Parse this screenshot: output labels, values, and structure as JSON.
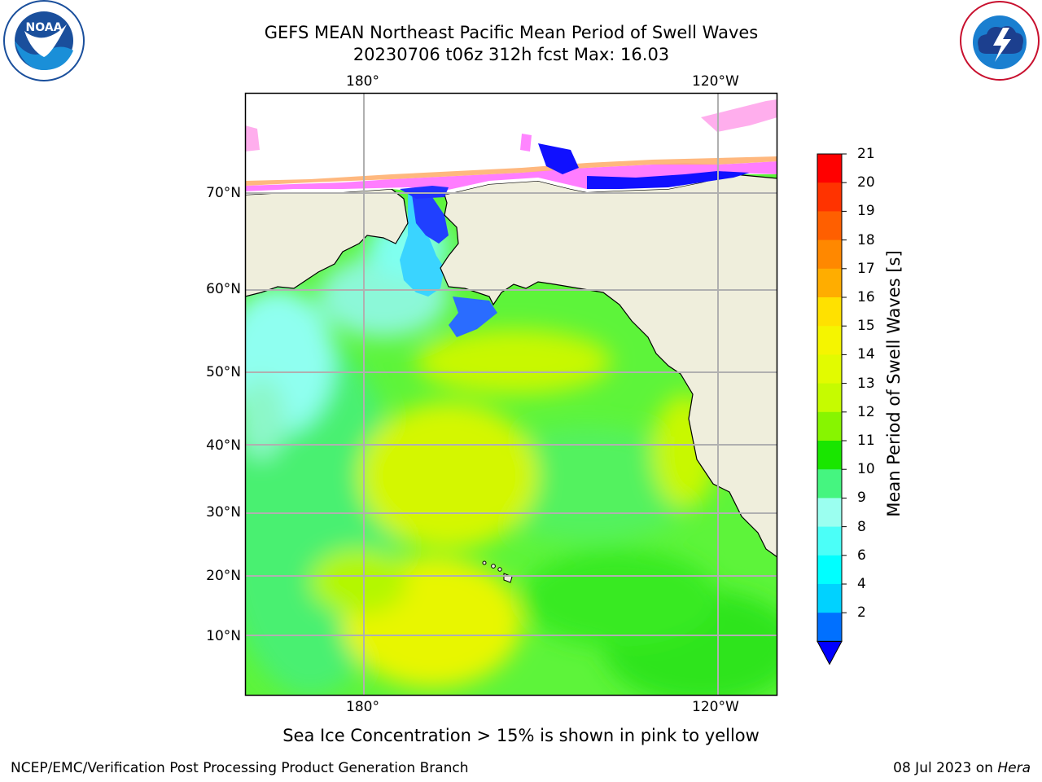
{
  "header": {
    "title_line1": "GEFS MEAN Northeast Pacific Mean Period of Swell Waves",
    "title_line2": "20230706 t06z 312h fcst   Max: 16.03"
  },
  "map": {
    "lon_labels": [
      "180°",
      "120°W"
    ],
    "lat_labels": [
      "70°N",
      "60°N",
      "50°N",
      "40°N",
      "30°N",
      "20°N",
      "10°N"
    ],
    "colors": {
      "land": "#efeedc",
      "ocean_green": "#66f228",
      "ocean_yellow": "#dff300",
      "ocean_cyan": "#7ffff0",
      "ice_blue": "#1010ff",
      "ice_pink": "#ff66ff",
      "ice_orange": "#ffb070"
    }
  },
  "colorbar": {
    "title": "Mean Period of Swell Waves [s]",
    "tick_labels": [
      "21",
      "20",
      "19",
      "18",
      "17",
      "16",
      "15",
      "14",
      "13",
      "12",
      "11",
      "10",
      "9",
      "8",
      "6",
      "4",
      "2"
    ],
    "colors": [
      "#ff0000",
      "#ff3300",
      "#ff5f00",
      "#ff8800",
      "#ffad00",
      "#ffe100",
      "#f5f500",
      "#e2fb00",
      "#c6fb00",
      "#87f500",
      "#19e600",
      "#45f580",
      "#9bfff0",
      "#4bfff8",
      "#00ffff",
      "#00d2ff",
      "#0070ff"
    ],
    "extend_color": "#0000ff"
  },
  "footer": {
    "note": "Sea Ice Concentration > 15% is shown in pink to yellow",
    "left": "NCEP/EMC/Verification Post Processing Product Generation Branch",
    "right_prefix": "08 Jul 2023 on ",
    "right_system": "Hera"
  },
  "logos": {
    "noaa_text": "NOAA",
    "nws_text": "NATIONAL WEATHER SERVICE"
  }
}
